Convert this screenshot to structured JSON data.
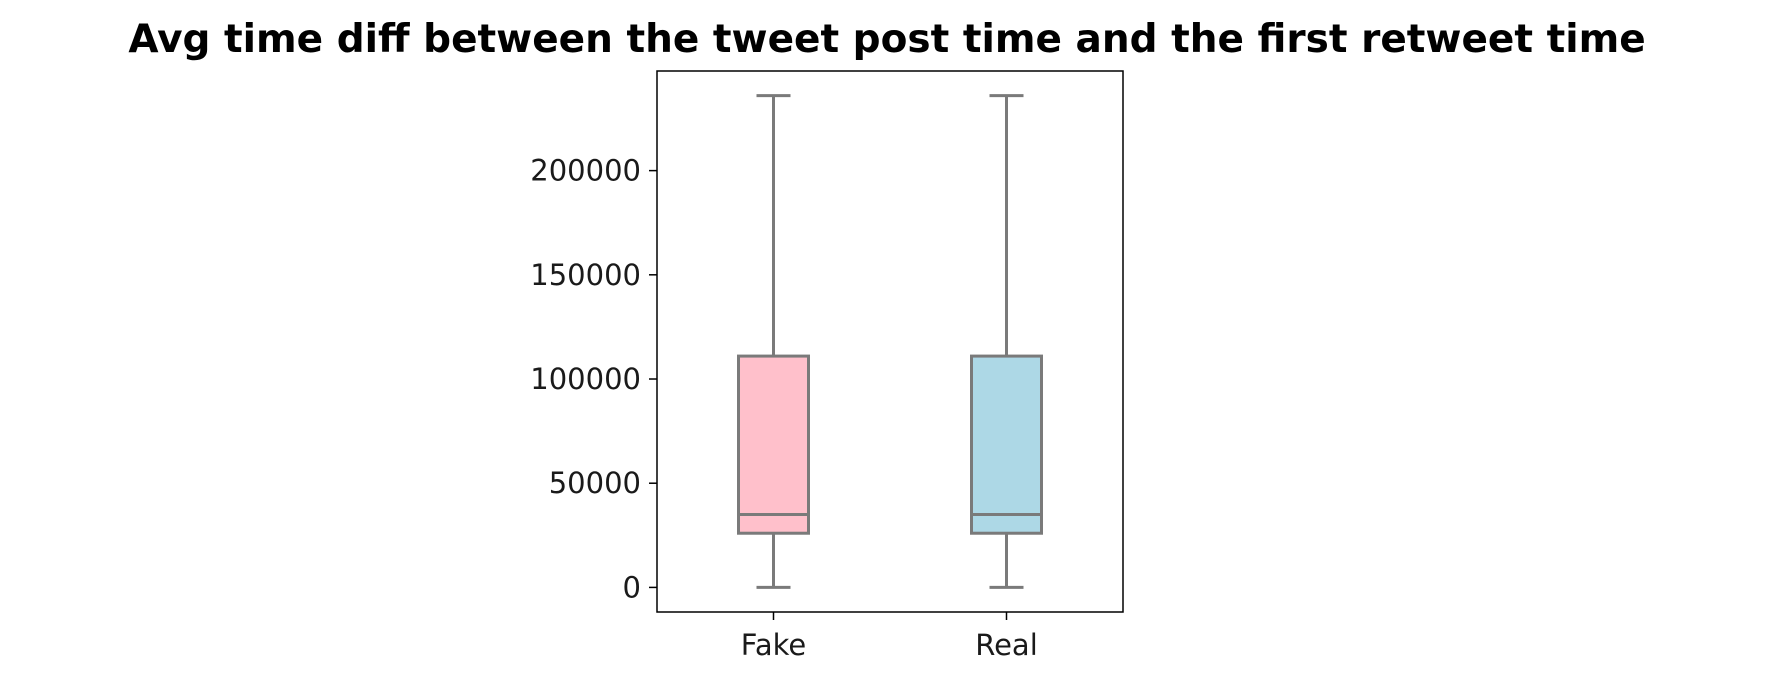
{
  "chart_data": {
    "type": "box",
    "title": "Avg time diff between the tweet post time and the first retweet time",
    "xlabel": "",
    "ylabel": "",
    "categories": [
      "Fake",
      "Real"
    ],
    "boxes": [
      {
        "name": "Fake",
        "whislo": 0,
        "q1": 26000,
        "med": 35000,
        "q3": 111000,
        "whishi": 236000,
        "fill": "#ffc0cb"
      },
      {
        "name": "Real",
        "whislo": 0,
        "q1": 26000,
        "med": 35000,
        "q3": 111000,
        "whishi": 236000,
        "fill": "#add8e6"
      }
    ],
    "yticks": [
      0,
      50000,
      100000,
      150000,
      200000
    ],
    "ytick_labels": [
      "0",
      "50000",
      "100000",
      "150000",
      "200000"
    ],
    "ylim": [
      -11800,
      247800
    ],
    "grid": false,
    "legend": "none",
    "line_color": "#7a7a7a"
  }
}
